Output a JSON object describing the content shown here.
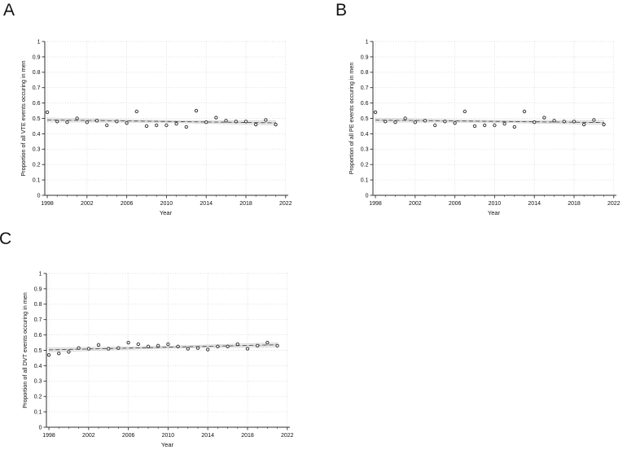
{
  "figure": {
    "background": "#ffffff"
  },
  "style": {
    "point_stroke": "#3d3d3d",
    "point_fill": "#ffffff",
    "trend_color": "#4a4a4a",
    "fit_line_color": "#bdbdbd",
    "ci_fill": "#ededed",
    "ci_edge": "#cfcfcf",
    "grid_color": "#d9d9d9",
    "axis_color": "#303030",
    "text_color": "#111111"
  },
  "chart_data": [
    {
      "panel": "A",
      "type": "scatter",
      "xlabel": "Year",
      "ylabel": "Proportion of all VTE events occuring in men",
      "xlim": [
        1997.75,
        2022.1
      ],
      "ylim": [
        0,
        1
      ],
      "xticks": [
        1998,
        2002,
        2006,
        2010,
        2014,
        2018,
        2022
      ],
      "ytick_values": [
        0,
        0.1,
        0.2,
        0.3,
        0.4,
        0.5,
        0.6,
        0.7,
        0.8,
        0.9,
        1
      ],
      "ytick_labels": [
        "0",
        "0.1",
        "0.2",
        "0.3",
        "0.4",
        "0.5",
        "0.6",
        "0.7",
        "0.8",
        "0.9",
        "1"
      ],
      "grid": true,
      "legend": "none",
      "x": [
        1998,
        1999,
        2000,
        2001,
        2002,
        2003,
        2004,
        2005,
        2006,
        2007,
        2008,
        2009,
        2010,
        2011,
        2012,
        2013,
        2014,
        2015,
        2016,
        2017,
        2018,
        2019,
        2020,
        2021
      ],
      "y": [
        0.54,
        0.48,
        0.475,
        0.5,
        0.475,
        0.485,
        0.455,
        0.48,
        0.47,
        0.545,
        0.45,
        0.455,
        0.455,
        0.465,
        0.445,
        0.55,
        0.475,
        0.505,
        0.485,
        0.48,
        0.48,
        0.46,
        0.49,
        0.46
      ],
      "trend": {
        "x": [
          1998,
          2021
        ],
        "y": [
          0.49,
          0.471
        ]
      },
      "ci_band": {
        "x": [
          1998,
          2009.5,
          2021
        ],
        "upper": [
          0.503,
          0.487,
          0.484
        ],
        "lower": [
          0.477,
          0.474,
          0.458
        ]
      }
    },
    {
      "panel": "B",
      "type": "scatter",
      "xlabel": "Year",
      "ylabel": "Proportion of all PE events occuring in men",
      "xlim": [
        1997.75,
        2022.1
      ],
      "ylim": [
        0,
        1
      ],
      "xticks": [
        1998,
        2002,
        2006,
        2010,
        2014,
        2018,
        2022
      ],
      "ytick_values": [
        0,
        0.1,
        0.2,
        0.3,
        0.4,
        0.5,
        0.6,
        0.7,
        0.8,
        0.9,
        1
      ],
      "ytick_labels": [
        "0",
        "0.1",
        "0.2",
        "0.3",
        "0.4",
        "0.5",
        "0.6",
        "0.7",
        "0.8",
        "0.9",
        "1"
      ],
      "grid": true,
      "legend": "none",
      "x": [
        1998,
        1999,
        2000,
        2001,
        2002,
        2003,
        2004,
        2005,
        2006,
        2007,
        2008,
        2009,
        2010,
        2011,
        2012,
        2013,
        2014,
        2015,
        2016,
        2017,
        2018,
        2019,
        2020,
        2021
      ],
      "y": [
        0.54,
        0.48,
        0.475,
        0.5,
        0.475,
        0.485,
        0.455,
        0.48,
        0.47,
        0.545,
        0.45,
        0.455,
        0.455,
        0.465,
        0.445,
        0.545,
        0.475,
        0.505,
        0.485,
        0.48,
        0.48,
        0.46,
        0.49,
        0.46
      ],
      "trend": {
        "x": [
          1998,
          2021
        ],
        "y": [
          0.489,
          0.473
        ]
      },
      "ci_band": {
        "x": [
          1998,
          2009.5,
          2021
        ],
        "upper": [
          0.502,
          0.487,
          0.486
        ],
        "lower": [
          0.476,
          0.475,
          0.46
        ]
      }
    },
    {
      "panel": "C",
      "type": "scatter",
      "xlabel": "Year",
      "ylabel": "Proportion of all DVT events occuring in men",
      "xlim": [
        1997.75,
        2022.1
      ],
      "ylim": [
        0,
        1
      ],
      "xticks": [
        1998,
        2002,
        2006,
        2010,
        2014,
        2018,
        2022
      ],
      "ytick_values": [
        0,
        0.1,
        0.2,
        0.3,
        0.4,
        0.5,
        0.6,
        0.7,
        0.8,
        0.9,
        1
      ],
      "ytick_labels": [
        "0",
        "0.1",
        "0.2",
        "0.3",
        "0.4",
        "0.5",
        "0.6",
        "0.7",
        "0.8",
        "0.9",
        "1"
      ],
      "grid": true,
      "legend": "none",
      "x": [
        1998,
        1999,
        2000,
        2001,
        2002,
        2003,
        2004,
        2005,
        2006,
        2007,
        2008,
        2009,
        2010,
        2011,
        2012,
        2013,
        2014,
        2015,
        2016,
        2017,
        2018,
        2019,
        2020,
        2021
      ],
      "y": [
        0.47,
        0.48,
        0.49,
        0.515,
        0.51,
        0.535,
        0.51,
        0.515,
        0.55,
        0.54,
        0.525,
        0.53,
        0.54,
        0.525,
        0.51,
        0.515,
        0.505,
        0.525,
        0.525,
        0.54,
        0.51,
        0.53,
        0.55,
        0.53
      ],
      "trend": {
        "x": [
          1998,
          2021
        ],
        "y": [
          0.503,
          0.536
        ]
      },
      "ci_band": {
        "x": [
          1998,
          2009.5,
          2021
        ],
        "upper": [
          0.516,
          0.526,
          0.549
        ],
        "lower": [
          0.49,
          0.513,
          0.523
        ]
      }
    }
  ]
}
